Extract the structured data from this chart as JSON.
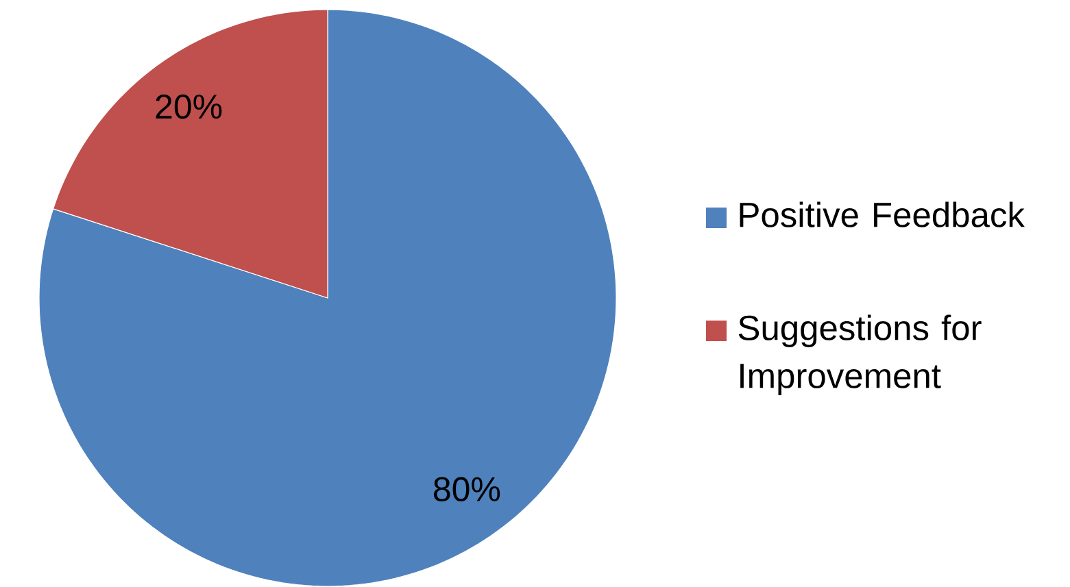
{
  "chart_data": {
    "type": "pie",
    "categories": [
      "Positive Feedback",
      "Suggestions for Improvement"
    ],
    "values": [
      80,
      20
    ],
    "colors": [
      "#4f81bd",
      "#c0504d"
    ],
    "value_labels": [
      "80%",
      "20%"
    ],
    "legend": "right"
  }
}
